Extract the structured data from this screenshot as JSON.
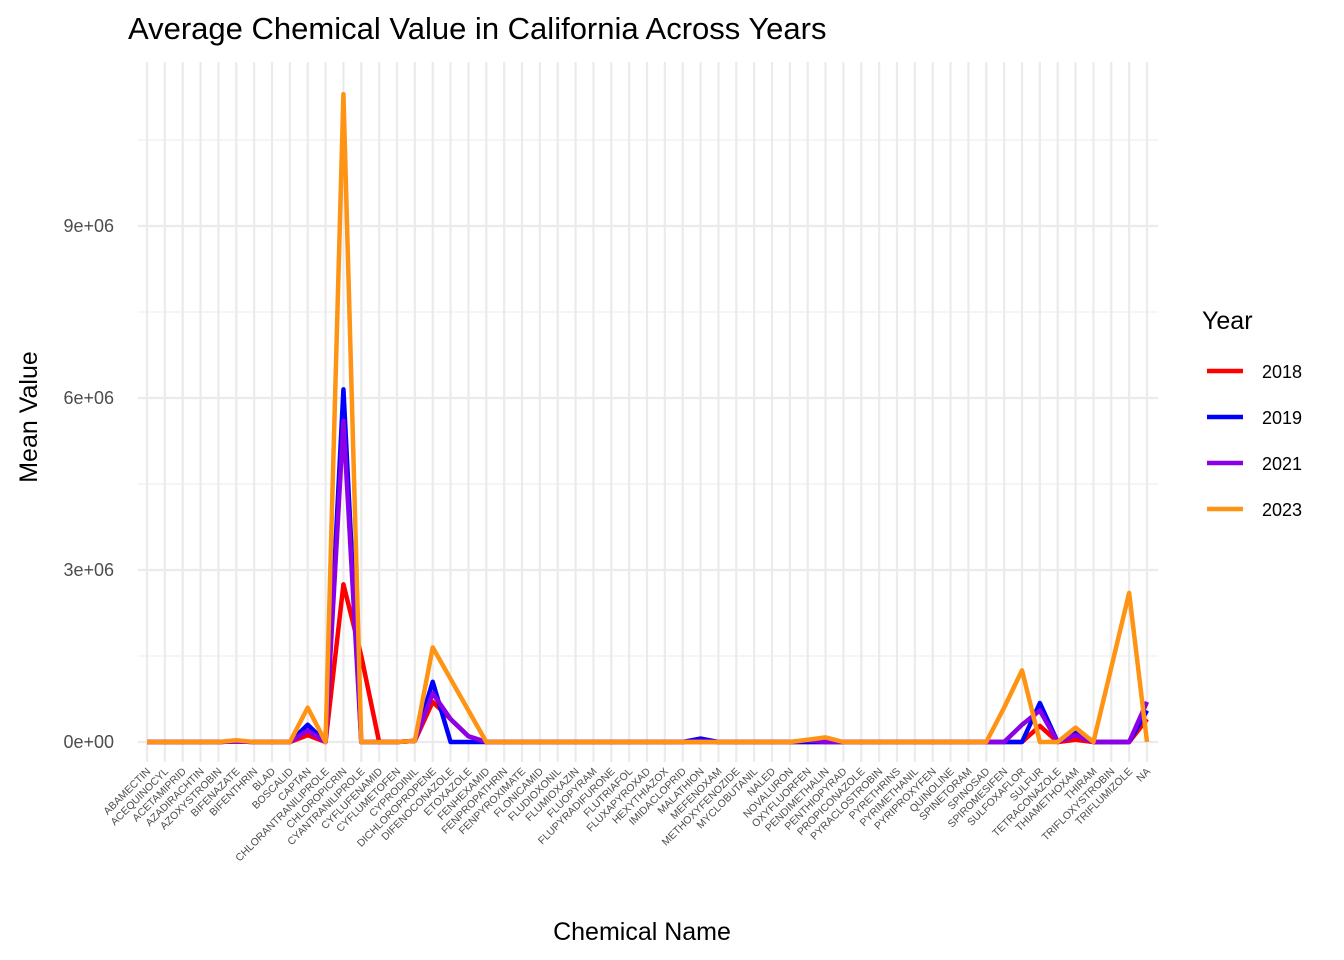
{
  "chart_data": {
    "type": "line",
    "title": "Average Chemical Value in California Across Years",
    "xlabel": "Chemical Name",
    "ylabel": "Mean Value",
    "ylim": [
      -300000,
      11600000
    ],
    "yticks": [
      0,
      3000000,
      6000000,
      9000000
    ],
    "ytick_labels": [
      "0e+00",
      "3e+06",
      "6e+06",
      "9e+06"
    ],
    "grid": true,
    "legend": {
      "title": "Year",
      "position": "right"
    },
    "categories": [
      "ABAMECTIN",
      "ACEQUINOCYL",
      "ACETAMIPRID",
      "AZADIRACHTIN",
      "AZOXYSTROBIN",
      "BIFENAZATE",
      "BIFENTHRIN",
      "BLAD",
      "BOSCALID",
      "CAPTAN",
      "CHLORANTRANILIPROLE",
      "CHLOROPICRIN",
      "CYANTRANILIPROLE",
      "CYFLUFENAMID",
      "CYFLUMETOFEN",
      "CYPRODINIL",
      "DICHLOROPROPENE",
      "DIFENOCONAZOLE",
      "ETOXAZOLE",
      "FENHEXAMID",
      "FENPROPATHRIN",
      "FENPYROXIMATE",
      "FLONICAMID",
      "FLUDIOXONIL",
      "FLUMIOXAZIN",
      "FLUOPYRAM",
      "FLUPYRADIFURONE",
      "FLUTRIAFOL",
      "FLUXAPYROXAD",
      "HEXYTHIAZOX",
      "IMIDACLOPRID",
      "MALATHION",
      "MEFENOXAM",
      "METHOXYFENOZIDE",
      "MYCLOBUTANIL",
      "NALED",
      "NOVALURON",
      "OXYFLUORFEN",
      "PENDIMETHALIN",
      "PENTHIOPYRAD",
      "PROPICONAZOLE",
      "PYRACLOSTROBIN",
      "PYRETHRINS",
      "PYRIMETHANIL",
      "PYRIPROXYFEN",
      "QUINOLINE",
      "SPINETORAM",
      "SPINOSAD",
      "SPIROMESIFEN",
      "SULFOXAFLOR",
      "SULFUR",
      "TETRACONAZOLE",
      "THIAMETHOXAM",
      "THIRAM",
      "TRIFLOXYSTROBIN",
      "TRIFLUMIZOLE",
      "NA"
    ],
    "series": [
      {
        "name": "2018",
        "color": "#ff0000",
        "values": [
          0,
          0,
          0,
          0,
          0,
          10000,
          0,
          0,
          0,
          120000,
          0,
          2750000,
          1500000,
          0,
          0,
          20000,
          700000,
          400000,
          100000,
          0,
          0,
          0,
          0,
          0,
          0,
          0,
          0,
          0,
          0,
          0,
          0,
          0,
          0,
          0,
          0,
          0,
          0,
          0,
          0,
          0,
          0,
          0,
          0,
          0,
          0,
          0,
          0,
          0,
          0,
          0,
          280000,
          0,
          40000,
          0,
          0,
          0,
          400000
        ]
      },
      {
        "name": "2019",
        "color": "#0000ff",
        "values": [
          0,
          0,
          0,
          0,
          0,
          10000,
          0,
          0,
          0,
          300000,
          0,
          6150000,
          0,
          0,
          0,
          20000,
          1050000,
          0,
          0,
          0,
          0,
          0,
          0,
          0,
          0,
          0,
          0,
          0,
          0,
          0,
          0,
          60000,
          0,
          0,
          0,
          0,
          0,
          0,
          0,
          0,
          0,
          0,
          0,
          0,
          0,
          0,
          0,
          0,
          0,
          0,
          680000,
          0,
          160000,
          0,
          0,
          0,
          550000
        ]
      },
      {
        "name": "2021",
        "color": "#8b00e6",
        "values": [
          0,
          0,
          0,
          0,
          0,
          10000,
          0,
          0,
          0,
          200000,
          0,
          5600000,
          0,
          0,
          0,
          20000,
          850000,
          400000,
          100000,
          0,
          0,
          0,
          0,
          0,
          0,
          0,
          0,
          0,
          0,
          0,
          0,
          20000,
          0,
          0,
          0,
          0,
          0,
          30000,
          0,
          0,
          0,
          0,
          0,
          0,
          0,
          0,
          0,
          0,
          0,
          300000,
          550000,
          0,
          120000,
          0,
          0,
          0,
          700000
        ]
      },
      {
        "name": "2023",
        "color": "#ff9314",
        "values": [
          0,
          0,
          0,
          0,
          0,
          30000,
          0,
          0,
          0,
          600000,
          0,
          11300000,
          0,
          0,
          0,
          20000,
          1650000,
          1100000,
          550000,
          0,
          0,
          0,
          0,
          0,
          0,
          0,
          0,
          0,
          0,
          0,
          0,
          0,
          0,
          0,
          0,
          0,
          0,
          40000,
          80000,
          0,
          0,
          0,
          0,
          0,
          0,
          0,
          0,
          0,
          600000,
          1250000,
          0,
          0,
          250000,
          0,
          1300000,
          2600000,
          0
        ]
      }
    ]
  }
}
